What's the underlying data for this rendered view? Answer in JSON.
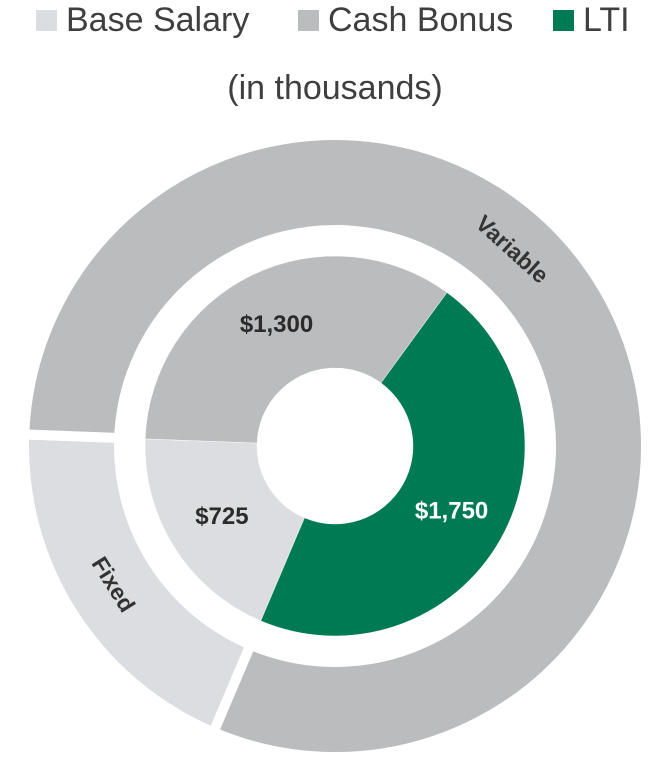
{
  "chart_data": {
    "type": "donut",
    "subtitle": "(in thousands)",
    "rings": [
      {
        "categories": [
          "Base Salary",
          "Cash Bonus",
          "LTI"
        ],
        "values": [
          725,
          1300,
          1750
        ],
        "value_labels": [
          "$725",
          "$1,300",
          "$1,750"
        ],
        "colors": [
          "#dcdde0",
          "#bbbcbe",
          "#007a53"
        ]
      },
      {
        "categories": [
          "Fixed",
          "Variable"
        ],
        "values": [
          725,
          3050
        ],
        "colors": [
          "#dcdde0",
          "#bbbcbe"
        ]
      }
    ],
    "legend": "top"
  }
}
